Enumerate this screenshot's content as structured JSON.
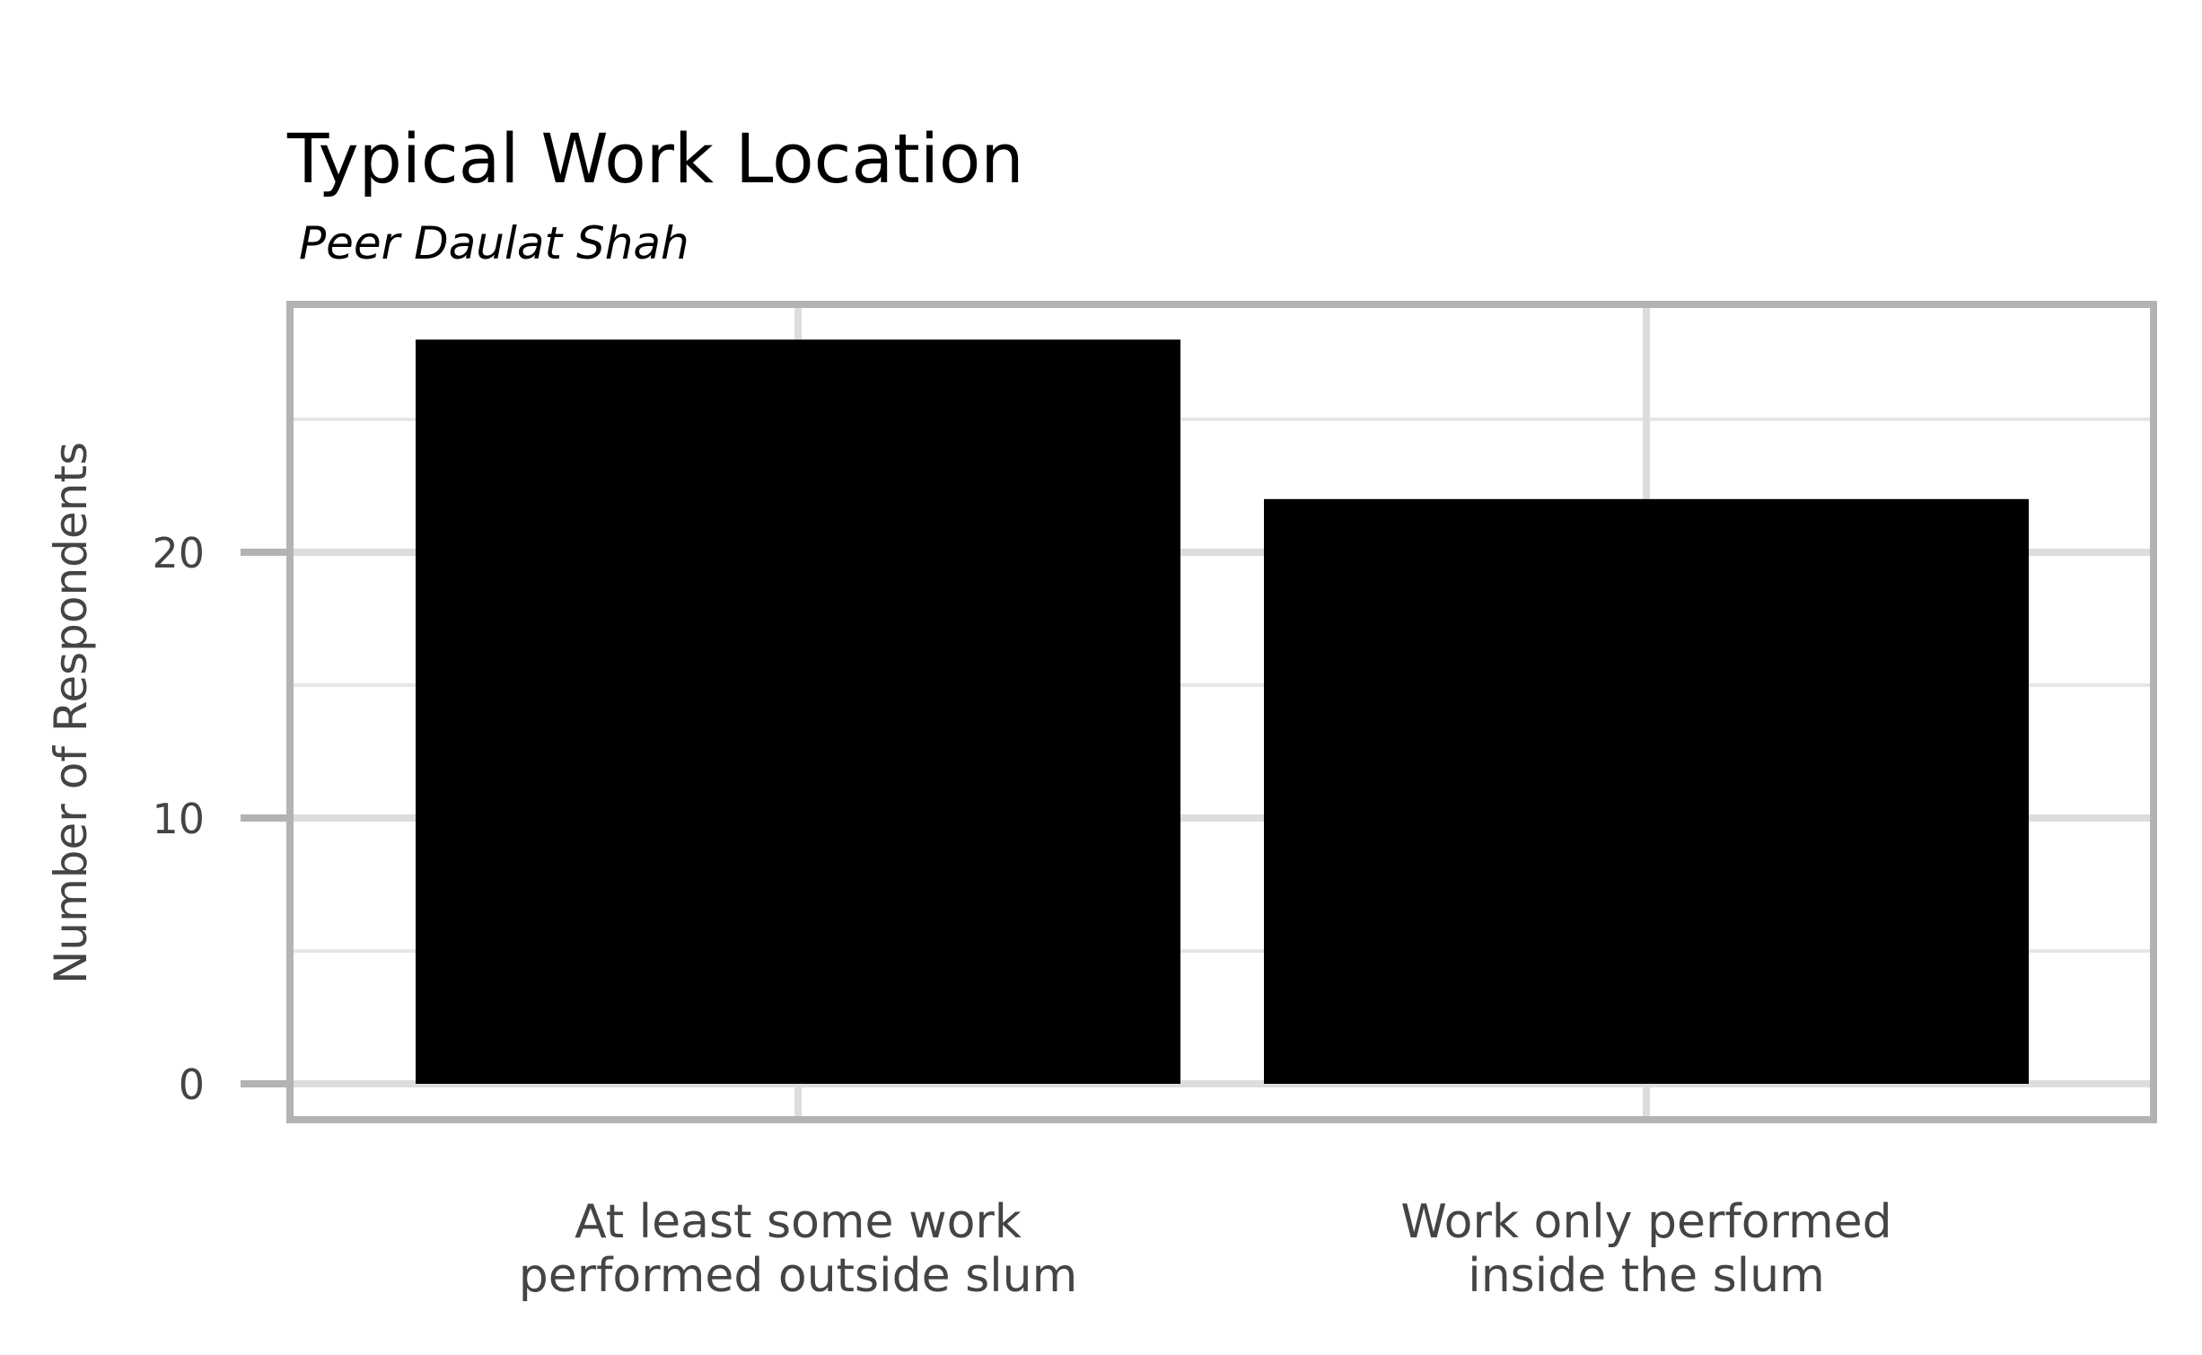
{
  "chart_data": {
    "type": "bar",
    "title": "Typical Work Location",
    "subtitle": "Peer Daulat Shah",
    "xlabel": "",
    "ylabel": "Number of Respondents",
    "categories": [
      [
        "At least some work",
        "performed outside slum"
      ],
      [
        "Work only performed",
        "inside the slum"
      ]
    ],
    "values": [
      28,
      22
    ],
    "ylim": [
      0,
      29.3
    ],
    "yticks": [
      0,
      10,
      20
    ],
    "grid": true,
    "legend": "none",
    "colors": {
      "bar": "#000000",
      "grid_major": "#dddddd",
      "grid_minor": "#e6e6e6",
      "frame": "#b3b3b3",
      "text": "#444444"
    }
  }
}
